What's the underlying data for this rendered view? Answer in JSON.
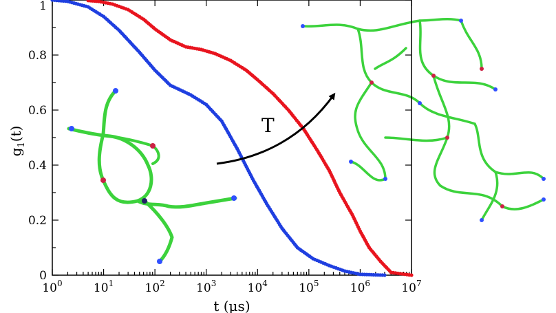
{
  "chart_data": {
    "type": "scatter",
    "title": "",
    "xlabel": "t (μs)",
    "ylabel_main": "g",
    "ylabel_sub": "1",
    "ylabel_tail": "(t)",
    "xscale": "log",
    "xlim": [
      1,
      10000000
    ],
    "ylim": [
      0,
      1
    ],
    "x_ticks": [
      {
        "base": "10",
        "exp": "0"
      },
      {
        "base": "10",
        "exp": "1"
      },
      {
        "base": "10",
        "exp": "2"
      },
      {
        "base": "10",
        "exp": "3"
      },
      {
        "base": "10",
        "exp": "4"
      },
      {
        "base": "10",
        "exp": "5"
      },
      {
        "base": "10",
        "exp": "6"
      },
      {
        "base": "10",
        "exp": "7"
      }
    ],
    "y_ticks": [
      "0",
      "0.2",
      "0.4",
      "0.6",
      "0.8",
      "1"
    ],
    "grid": false,
    "annotation": "T",
    "series": [
      {
        "color": "#e8141e",
        "points": [
          [
            5,
            0.998
          ],
          [
            8,
            0.995
          ],
          [
            15,
            0.985
          ],
          [
            30,
            0.965
          ],
          [
            60,
            0.93
          ],
          [
            100,
            0.895
          ],
          [
            200,
            0.855
          ],
          [
            400,
            0.83
          ],
          [
            800,
            0.82
          ],
          [
            1500,
            0.805
          ],
          [
            3000,
            0.78
          ],
          [
            6000,
            0.745
          ],
          [
            10000,
            0.71
          ],
          [
            20000,
            0.66
          ],
          [
            40000,
            0.6
          ],
          [
            80000,
            0.53
          ],
          [
            150000,
            0.45
          ],
          [
            250000,
            0.38
          ],
          [
            400000,
            0.3
          ],
          [
            700000,
            0.22
          ],
          [
            1000000,
            0.16
          ],
          [
            1500000,
            0.1
          ],
          [
            2500000,
            0.05
          ],
          [
            4000000,
            0.01
          ],
          [
            10000000,
            0.0
          ]
        ]
      },
      {
        "color": "#1f3fe0",
        "points": [
          [
            1,
            1.0
          ],
          [
            2,
            0.995
          ],
          [
            5,
            0.975
          ],
          [
            10,
            0.94
          ],
          [
            20,
            0.89
          ],
          [
            50,
            0.81
          ],
          [
            100,
            0.745
          ],
          [
            200,
            0.69
          ],
          [
            500,
            0.655
          ],
          [
            1000,
            0.62
          ],
          [
            2000,
            0.56
          ],
          [
            4000,
            0.46
          ],
          [
            8000,
            0.35
          ],
          [
            15000,
            0.26
          ],
          [
            30000,
            0.17
          ],
          [
            60000,
            0.1
          ],
          [
            120000,
            0.06
          ],
          [
            250000,
            0.035
          ],
          [
            500000,
            0.015
          ],
          [
            1000000,
            0.003
          ],
          [
            3000000,
            0.0
          ]
        ]
      }
    ]
  }
}
